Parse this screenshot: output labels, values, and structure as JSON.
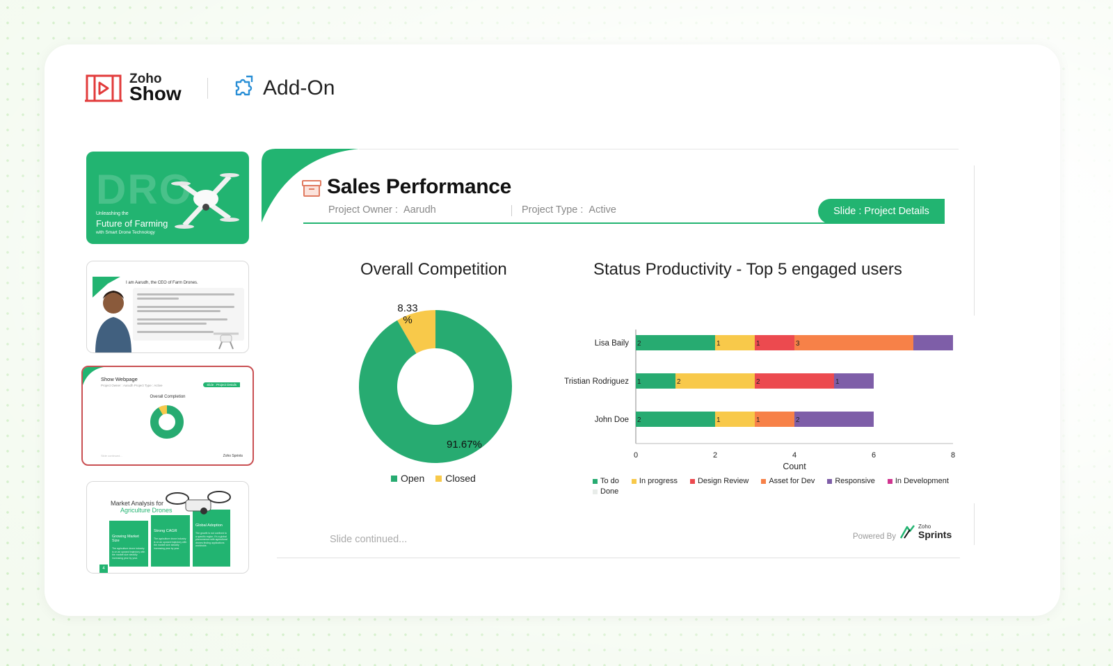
{
  "brand": {
    "zoho": "Zoho",
    "show": "Show",
    "addon": "Add-On"
  },
  "thumbnails": {
    "t1": {
      "big": "DRO",
      "sub": "Unleashing the",
      "main": "Future of Farming",
      "sub2": "with Smart Drone Technology"
    },
    "t2": {
      "head": "I am Aarudh, the CEO of Farm Drones."
    },
    "t3": {
      "title": "Show Webpage",
      "sub": "Project Owner : Aarudh   Project Type : Active",
      "badge": "Slide : Project Details",
      "chart_title": "Overall Completion",
      "foot": "Slide continued...",
      "sprints": "Zoho Sprints"
    },
    "t4": {
      "title1": "Market Analysis for",
      "title2": "Agriculture Drones",
      "col1": "Growing Market Size",
      "col2": "Strong CAGR",
      "col3": "Global Adoption",
      "col1_body": "The agriculture drone industry is on an upward trajectory with the market size steadily increasing year by year.",
      "col2_body": "The agriculture drone industry is on an upward trajectory with the market size steadily increasing year by year.",
      "col3_body": "The growth is not confined to a specific region. It's a global phenomenon with agricultural drones finding applications worldwide.",
      "page": "4"
    }
  },
  "slide": {
    "title": "Sales Performance",
    "owner_label": "Project Owner :",
    "owner_value": "Aarudh",
    "type_label": "Project Type :",
    "type_value": "Active",
    "badge": "Slide : Project Details",
    "continued": "Slide continued...",
    "powered_by": "Powered By",
    "sprints_zoho": "Zoho",
    "sprints_name": "Sprints"
  },
  "chart_data": [
    {
      "type": "pie",
      "title": "Overall Competition",
      "categories": [
        "Open",
        "Closed"
      ],
      "values": [
        91.67,
        8.33
      ],
      "labels": [
        "91.67%",
        "8.33 %"
      ],
      "colors": [
        "#27ab71",
        "#f8c94a"
      ],
      "legend": "bottom"
    },
    {
      "type": "bar",
      "stacked": true,
      "orientation": "horizontal",
      "title": "Status Productivity - Top 5 engaged users",
      "xlabel": "Count",
      "xlim": [
        0,
        8
      ],
      "xticks": [
        0,
        2,
        4,
        6,
        8
      ],
      "categories": [
        "Lisa Baily",
        "Tristian  Rodriguez",
        "John Doe"
      ],
      "series": [
        {
          "name": "To do",
          "color": "#27ab71",
          "values": [
            2,
            1,
            2
          ],
          "labels": [
            "2",
            "1",
            "2"
          ]
        },
        {
          "name": "In progress",
          "color": "#f8c94a",
          "values": [
            1,
            2,
            1
          ],
          "labels": [
            "1",
            "2",
            "1"
          ]
        },
        {
          "name": "Design Review",
          "color": "#ec4a4f",
          "values": [
            1,
            2,
            0
          ],
          "labels": [
            "1",
            "2",
            "0"
          ]
        },
        {
          "name": "Asset for Dev",
          "color": "#f78148",
          "values": [
            3,
            0,
            1
          ],
          "labels": [
            "3",
            "0",
            "1"
          ]
        },
        {
          "name": "Responsive",
          "color": "#7e5ea8",
          "values": [
            1,
            1,
            2
          ],
          "labels": [
            "",
            "1",
            "2"
          ]
        },
        {
          "name": "In Development",
          "color": "#d0348f",
          "values": [
            0,
            0,
            0
          ],
          "labels": [
            "",
            "",
            ""
          ]
        },
        {
          "name": "Done",
          "color": "#e8ece9",
          "values": [
            0,
            0,
            0
          ],
          "labels": [
            "",
            "",
            ""
          ]
        }
      ],
      "legend": "bottom"
    }
  ]
}
